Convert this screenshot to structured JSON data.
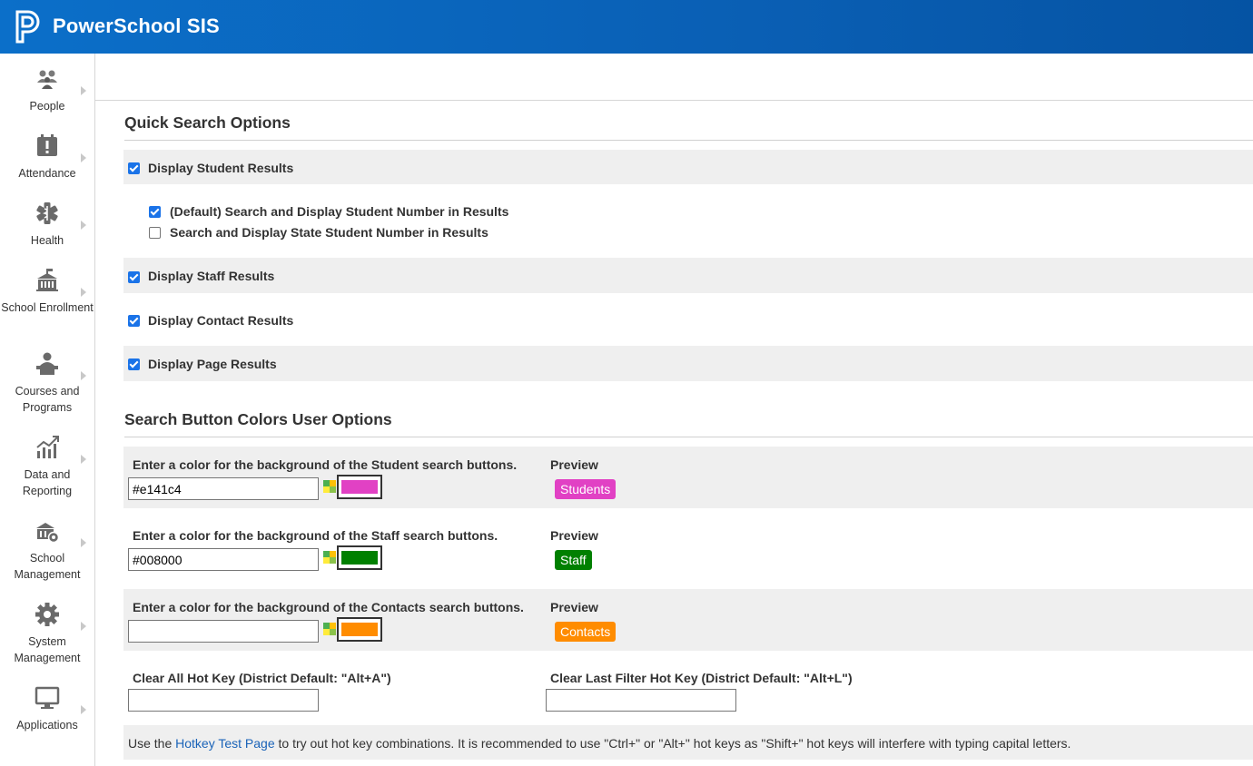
{
  "header": {
    "app_title": "PowerSchool SIS",
    "logo_icon": "powerschool-p-logo"
  },
  "sidebar": {
    "items": [
      {
        "label": "People",
        "icon": "people-icon"
      },
      {
        "label": "Attendance",
        "icon": "attendance-icon"
      },
      {
        "label": "Health",
        "icon": "health-icon"
      },
      {
        "label": "School Enrollment",
        "icon": "school-enrollment-icon"
      },
      {
        "label": "Courses and Programs",
        "icon": "courses-icon"
      },
      {
        "label": "Data and Reporting",
        "icon": "chart-icon"
      },
      {
        "label": "School Management",
        "icon": "school-management-icon"
      },
      {
        "label": "System Management",
        "icon": "gear-icon"
      },
      {
        "label": "Applications",
        "icon": "monitor-icon"
      }
    ]
  },
  "quick_search": {
    "title": "Quick Search Options",
    "student_results": {
      "label": "Display Student Results",
      "checked": true
    },
    "student_number": {
      "label": "(Default) Search and Display Student Number in Results",
      "checked": true
    },
    "state_student_number": {
      "label": "Search and Display State Student Number in Results",
      "checked": false
    },
    "staff_results": {
      "label": "Display Staff Results",
      "checked": true
    },
    "contact_results": {
      "label": "Display Contact Results",
      "checked": true
    },
    "page_results": {
      "label": "Display Page Results",
      "checked": true
    }
  },
  "colors": {
    "title": "Search Button Colors User Options",
    "preview_label": "Preview",
    "student": {
      "label": "Enter a color for the background of the Student search buttons.",
      "value": "#e141c4",
      "swatch": "#e141c4",
      "preview_text": "Students"
    },
    "staff": {
      "label": "Enter a color for the background of the Staff search buttons.",
      "value": "#008000",
      "swatch": "#008000",
      "preview_text": "Staff"
    },
    "contacts": {
      "label": "Enter a color for the background of the Contacts search buttons.",
      "value": "",
      "swatch": "#ff8c00",
      "preview_text": "Contacts"
    }
  },
  "hotkeys": {
    "clear_all_label": "Clear All Hot Key (District Default: \"Alt+A\")",
    "clear_all_value": "",
    "clear_last_label": "Clear Last Filter Hot Key (District Default: \"Alt+L\")",
    "clear_last_value": ""
  },
  "note": {
    "prefix": "Use the ",
    "link": "Hotkey Test Page",
    "suffix": " to try out hot key combinations. It is recommended to use \"Ctrl+\" or \"Alt+\" hot keys as \"Shift+\" hot keys will interfere with typing capital letters."
  }
}
